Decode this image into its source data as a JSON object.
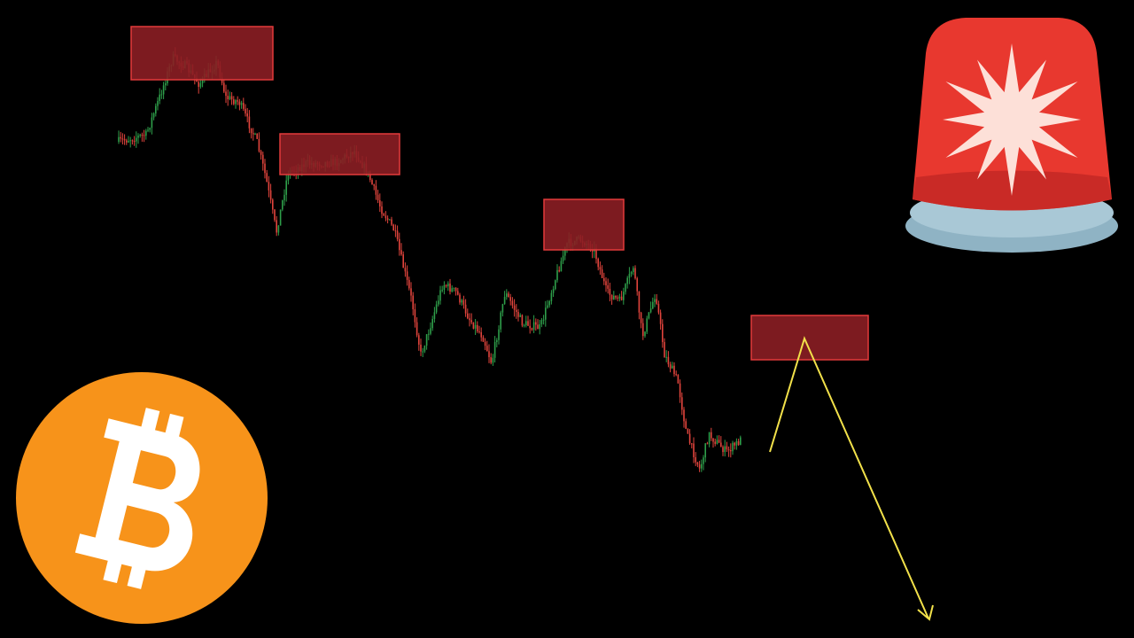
{
  "colors": {
    "background": "#000000",
    "bull_candle": "#2e9e4a",
    "bear_candle": "#e0443c",
    "zone_fill": "#8b1e24",
    "zone_border": "#e33b3b",
    "projection_line": "#f2e14a",
    "bitcoin_orange": "#f7931a",
    "siren_red": "#e8382f",
    "siren_base": "#8fb3c4"
  },
  "icons": {
    "logo": "bitcoin-logo-icon",
    "alert": "siren-alarm-icon",
    "arrow": "arrow-down-right-icon"
  },
  "zones": [
    "resistance-zone-1",
    "resistance-zone-2",
    "resistance-zone-3",
    "resistance-zone-4"
  ]
}
